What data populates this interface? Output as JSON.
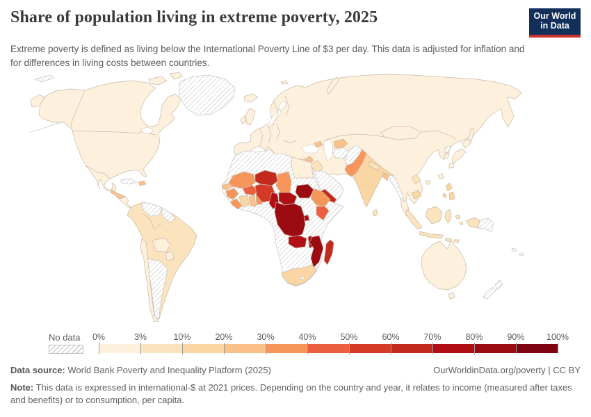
{
  "header": {
    "title": "Share of population living in extreme poverty, 2025",
    "subtitle": "Extreme poverty is defined as living below the International Poverty Line of $3 per day. This data is adjusted for inflation and for differences in living costs between countries.",
    "logo": {
      "line1": "Our World",
      "line2": "in Data",
      "bg": "#13305B",
      "accent": "#CE302E"
    }
  },
  "legend": {
    "no_data_label": "No data",
    "tick_labels": [
      "0%",
      "3%",
      "10%",
      "20%",
      "30%",
      "40%",
      "50%",
      "60%",
      "70%",
      "80%",
      "90%",
      "100%"
    ],
    "bin_colors": [
      "#FDF1DE",
      "#FBE3BE",
      "#FAD6A5",
      "#FAC289",
      "#F7965B",
      "#EC603F",
      "#D53927",
      "#C22A1E",
      "#B01015",
      "#9B0B11",
      "#7D0410"
    ]
  },
  "palette": {
    "bins": [
      "#FDF1DE",
      "#FBE3BE",
      "#FAD6A5",
      "#FAC289",
      "#F7965B",
      "#EC603F",
      "#D53927",
      "#C22A1E",
      "#B01015",
      "#9B0B11",
      "#7D0410"
    ],
    "ocean": "#ffffff",
    "country_border": "#c9b8a4",
    "no_data_border": "#c4c4c4"
  },
  "footer": {
    "datasource_label": "Data source:",
    "datasource_text": " World Bank Poverty and Inequality Platform (2025)",
    "link_text": "OurWorldinData.org/poverty | CC BY",
    "note_label": "Note:",
    "note_text": " This data is expressed in international-$ at 2021 prices. Depending on the country and year, it relates to income (measured after taxes and benefits) or to consumption, per capita."
  },
  "chart_data": {
    "type": "choropleth",
    "title": "Share of population living in extreme poverty, 2025",
    "unit": "% of population below the International Poverty Line of $3 per day",
    "bins": [
      "0-3%",
      "3-10%",
      "10-20%",
      "20-30%",
      "30-40%",
      "40-50%",
      "50-60%",
      "60-70%",
      "70-80%",
      "80-90%",
      "90-100%",
      "No data"
    ],
    "legend_position": "bottom",
    "regions": [
      {
        "name": "United States",
        "share": "0-3%"
      },
      {
        "name": "Canada",
        "share": "0-3%"
      },
      {
        "name": "Mexico",
        "share": "0-3%"
      },
      {
        "name": "Guatemala / Honduras",
        "share": "20-30%"
      },
      {
        "name": "Haiti / Dominican Republic",
        "share": "20-30%"
      },
      {
        "name": "Cuba",
        "share": "No data"
      },
      {
        "name": "Colombia",
        "share": "3-10%"
      },
      {
        "name": "Ecuador",
        "share": "3-10%"
      },
      {
        "name": "Peru",
        "share": "3-10%"
      },
      {
        "name": "Brazil",
        "share": "3-10%"
      },
      {
        "name": "Bolivia",
        "share": "0-3%"
      },
      {
        "name": "Paraguay",
        "share": "0-3%"
      },
      {
        "name": "Chile",
        "share": "0-3%"
      },
      {
        "name": "Argentina",
        "share": "No data"
      },
      {
        "name": "Venezuela",
        "share": "No data"
      },
      {
        "name": "Guyana / Suriname",
        "share": "No data"
      },
      {
        "name": "Greenland",
        "share": "No data"
      },
      {
        "name": "Europe (UK, France, Germany, Spain, Italy, Poland, Ukraine)",
        "share": "0-3%"
      },
      {
        "name": "Russia",
        "share": "0-3%"
      },
      {
        "name": "Turkey",
        "share": "0-3%"
      },
      {
        "name": "Syria",
        "share": "20-30%"
      },
      {
        "name": "Iraq",
        "share": "3-10%"
      },
      {
        "name": "Iran",
        "share": "0-3%"
      },
      {
        "name": "Saudi Arabia / Oman",
        "share": "No data"
      },
      {
        "name": "Yemen",
        "share": "60-70%"
      },
      {
        "name": "Kazakhstan",
        "share": "0-3%"
      },
      {
        "name": "Uzbekistan",
        "share": "20-30%"
      },
      {
        "name": "Turkmenistan",
        "share": "No data"
      },
      {
        "name": "Afghanistan",
        "share": "No data"
      },
      {
        "name": "Pakistan",
        "share": "30-40%"
      },
      {
        "name": "India",
        "share": "10-20%"
      },
      {
        "name": "Nepal",
        "share": "3-10%"
      },
      {
        "name": "Bangladesh",
        "share": "20-30%"
      },
      {
        "name": "Sri Lanka",
        "share": "3-10%"
      },
      {
        "name": "Myanmar",
        "share": "No data"
      },
      {
        "name": "China",
        "share": "0-3%"
      },
      {
        "name": "Mongolia",
        "share": "0-3%"
      },
      {
        "name": "North Korea",
        "share": "No data"
      },
      {
        "name": "Japan / South Korea",
        "share": "0-3%"
      },
      {
        "name": "Thailand / Vietnam / Malaysia",
        "share": "0-3%"
      },
      {
        "name": "Laos",
        "share": "3-10%"
      },
      {
        "name": "Cambodia",
        "share": "10-20%"
      },
      {
        "name": "Indonesia",
        "share": "3-10%"
      },
      {
        "name": "Philippines",
        "share": "10-20%"
      },
      {
        "name": "Papua New Guinea",
        "share": "No data"
      },
      {
        "name": "Australia",
        "share": "0-3%"
      },
      {
        "name": "New Zealand",
        "share": "No data"
      },
      {
        "name": "Morocco / Algeria / Libya / Mauritania",
        "share": "No data"
      },
      {
        "name": "Egypt",
        "share": "0-3%"
      },
      {
        "name": "Senegal",
        "share": "20-30%"
      },
      {
        "name": "Guinea / Sierra Leone / Liberia",
        "share": "30-40%"
      },
      {
        "name": "Ivory Coast",
        "share": "10-20%"
      },
      {
        "name": "Ghana",
        "share": "20-30%"
      },
      {
        "name": "Togo / Benin",
        "share": "30-40%"
      },
      {
        "name": "Burkina Faso",
        "share": "40-50%"
      },
      {
        "name": "Mali",
        "share": "30-40%"
      },
      {
        "name": "Niger",
        "share": "60-70%"
      },
      {
        "name": "Chad",
        "share": "30-40%"
      },
      {
        "name": "Nigeria",
        "share": "50-60%"
      },
      {
        "name": "Cameroon",
        "share": "70-80%"
      },
      {
        "name": "Central African Republic",
        "share": "70-80%"
      },
      {
        "name": "Sudan",
        "share": "No data"
      },
      {
        "name": "South Sudan",
        "share": "80-90%"
      },
      {
        "name": "Eritrea / Somalia",
        "share": "No data"
      },
      {
        "name": "Ethiopia",
        "share": "30-40%"
      },
      {
        "name": "Kenya",
        "share": "40-50%"
      },
      {
        "name": "DR Congo",
        "share": "80-90%"
      },
      {
        "name": "Rwanda / Burundi",
        "share": "70-80%"
      },
      {
        "name": "Tanzania",
        "share": "No data"
      },
      {
        "name": "Angola",
        "share": "No data"
      },
      {
        "name": "Zambia",
        "share": "70-80%"
      },
      {
        "name": "Malawi",
        "share": "70-80%"
      },
      {
        "name": "Mozambique",
        "share": "80-90%"
      },
      {
        "name": "Madagascar",
        "share": "60-70%"
      },
      {
        "name": "Zimbabwe / Botswana / Namibia",
        "share": "No data"
      },
      {
        "name": "South Africa",
        "share": "10-20%"
      }
    ]
  }
}
